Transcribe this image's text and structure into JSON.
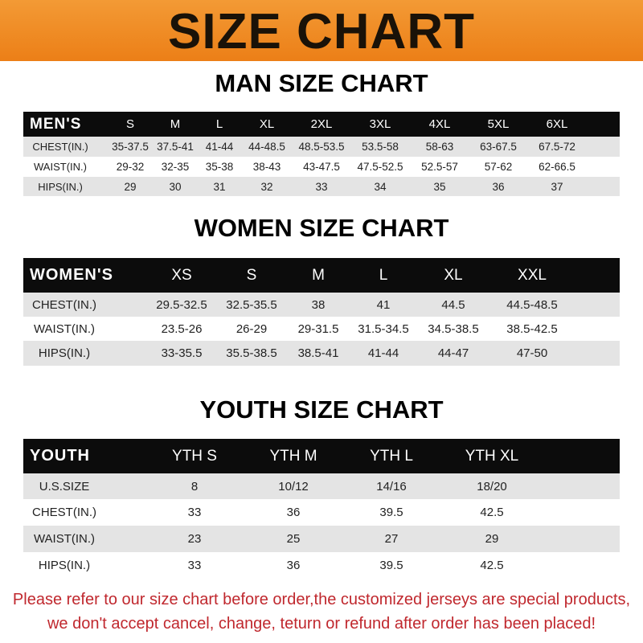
{
  "banner": {
    "title": "SIZE CHART",
    "color": "#ec7f17"
  },
  "men": {
    "title": "MAN SIZE CHART",
    "header": [
      "MEN'S",
      "S",
      "M",
      "L",
      "XL",
      "2XL",
      "3XL",
      "4XL",
      "5XL",
      "6XL"
    ],
    "rows": [
      [
        "CHEST(IN.)",
        "35-37.5",
        "37.5-41",
        "41-44",
        "44-48.5",
        "48.5-53.5",
        "53.5-58",
        "58-63",
        "63-67.5",
        "67.5-72"
      ],
      [
        "WAIST(IN.)",
        "29-32",
        "32-35",
        "35-38",
        "38-43",
        "43-47.5",
        "47.5-52.5",
        "52.5-57",
        "57-62",
        "62-66.5"
      ],
      [
        "HIPS(IN.)",
        "29",
        "30",
        "31",
        "32",
        "33",
        "34",
        "35",
        "36",
        "37"
      ]
    ]
  },
  "women": {
    "title": "WOMEN SIZE CHART",
    "header": [
      "WOMEN'S",
      "XS",
      "S",
      "M",
      "L",
      "XL",
      "XXL"
    ],
    "rows": [
      [
        "CHEST(IN.)",
        "29.5-32.5",
        "32.5-35.5",
        "38",
        "41",
        "44.5",
        "44.5-48.5"
      ],
      [
        "WAIST(IN.)",
        "23.5-26",
        "26-29",
        "29-31.5",
        "31.5-34.5",
        "34.5-38.5",
        "38.5-42.5"
      ],
      [
        "HIPS(IN.)",
        "33-35.5",
        "35.5-38.5",
        "38.5-41",
        "41-44",
        "44-47",
        "47-50"
      ]
    ]
  },
  "youth": {
    "title": "YOUTH SIZE CHART",
    "header": [
      "YOUTH",
      "YTH S",
      "YTH M",
      "YTH L",
      "YTH XL"
    ],
    "rows": [
      [
        "U.S.SIZE",
        "8",
        "10/12",
        "14/16",
        "18/20"
      ],
      [
        "CHEST(IN.)",
        "33",
        "36",
        "39.5",
        "42.5"
      ],
      [
        "WAIST(IN.)",
        "23",
        "25",
        "27",
        "29"
      ],
      [
        "HIPS(IN.)",
        "33",
        "36",
        "39.5",
        "42.5"
      ]
    ]
  },
  "note": {
    "line1": "Please refer to our size chart before order,the customized jerseys are special products,",
    "line2": "we don't accept cancel, change, teturn or refund after order has been placed!",
    "color": "#c0282e"
  }
}
